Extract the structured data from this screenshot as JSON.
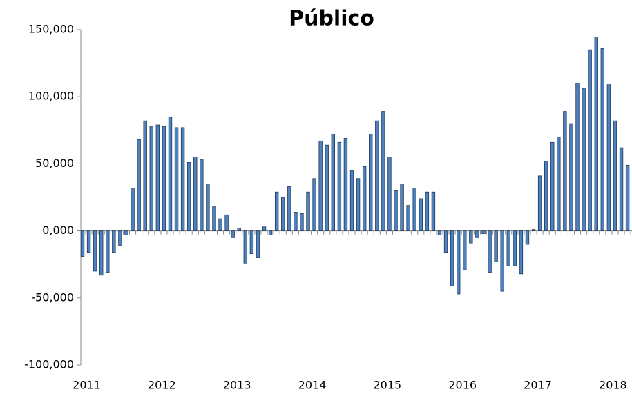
{
  "chart_data": {
    "type": "bar",
    "title": "Público",
    "categories": [
      "2011",
      null,
      null,
      null,
      null,
      null,
      null,
      null,
      null,
      null,
      null,
      null,
      "2012",
      null,
      null,
      null,
      null,
      null,
      null,
      null,
      null,
      null,
      null,
      null,
      "2013",
      null,
      null,
      null,
      null,
      null,
      null,
      null,
      null,
      null,
      null,
      null,
      "2014",
      null,
      null,
      null,
      null,
      null,
      null,
      null,
      null,
      null,
      null,
      null,
      "2015",
      null,
      null,
      null,
      null,
      null,
      null,
      null,
      null,
      null,
      null,
      null,
      "2016",
      null,
      null,
      null,
      null,
      null,
      null,
      null,
      null,
      null,
      null,
      null,
      "2017",
      null,
      null,
      null,
      null,
      null,
      null,
      null,
      null,
      null,
      null,
      null,
      "2018",
      null,
      null,
      null
    ],
    "values": [
      -19000,
      -16000,
      -30000,
      -33000,
      -31000,
      -16000,
      -11000,
      -3000,
      32000,
      68000,
      82000,
      78000,
      79000,
      78000,
      85000,
      77000,
      77000,
      51000,
      55000,
      53000,
      35000,
      18000,
      9000,
      12000,
      -5000,
      2000,
      -24000,
      -17000,
      -20000,
      3000,
      -3000,
      29000,
      25000,
      33000,
      14000,
      13000,
      29000,
      39000,
      67000,
      64000,
      72000,
      66000,
      69000,
      45000,
      39000,
      48000,
      72000,
      82000,
      89000,
      55000,
      30000,
      35000,
      19000,
      32000,
      24000,
      29000,
      29000,
      -3000,
      -16000,
      -41000,
      -47000,
      -29000,
      -9000,
      -5000,
      -2000,
      -31000,
      -23000,
      -45000,
      -26000,
      -26000,
      -32000,
      -10000,
      1000,
      41000,
      52000,
      66000,
      70000,
      89000,
      80000,
      110000,
      106000,
      135000,
      144000,
      136000,
      109000,
      82000,
      62000,
      49000
    ],
    "color": "#4f81bd",
    "ylim": [
      -100000,
      150000
    ],
    "yticks": [
      {
        "value": -100000,
        "label": "-100,000"
      },
      {
        "value": -50000,
        "label": "-50,000"
      },
      {
        "value": 0,
        "label": "0,000"
      },
      {
        "value": 50000,
        "label": "50,000"
      },
      {
        "value": 100000,
        "label": "100,000"
      },
      {
        "value": 150000,
        "label": "150,000"
      }
    ]
  }
}
